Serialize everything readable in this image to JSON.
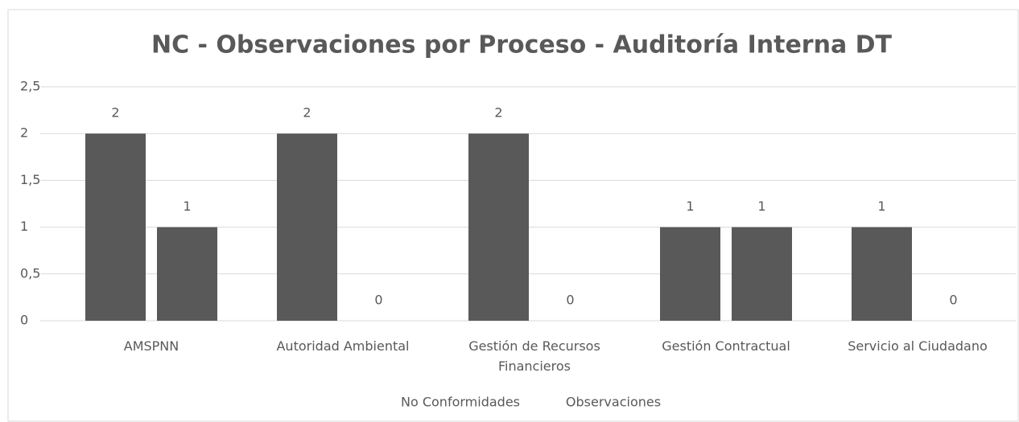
{
  "chart_data": {
    "type": "bar",
    "title": "NC - Observaciones por Proceso - Auditoría Interna DT",
    "categories": [
      "AMSPNN",
      "Autoridad Ambiental",
      "Gestión de Recursos Financieros",
      "Gestión Contractual",
      "Servicio al Ciudadano"
    ],
    "series": [
      {
        "name": "No Conformidades",
        "color": "#595959",
        "values": [
          2,
          2,
          2,
          1,
          1
        ]
      },
      {
        "name": "Observaciones",
        "color": "#595959",
        "values": [
          1,
          0,
          0,
          1,
          0
        ]
      }
    ],
    "ylim": [
      0,
      2.5
    ],
    "yticks": [
      0,
      {
        "value": 0.5,
        "label": "0,5"
      },
      1,
      {
        "value": 1.5,
        "label": "1,5"
      },
      2,
      {
        "value": 2.5,
        "label": "2,5"
      }
    ],
    "grid": true,
    "legend": "bottom"
  }
}
